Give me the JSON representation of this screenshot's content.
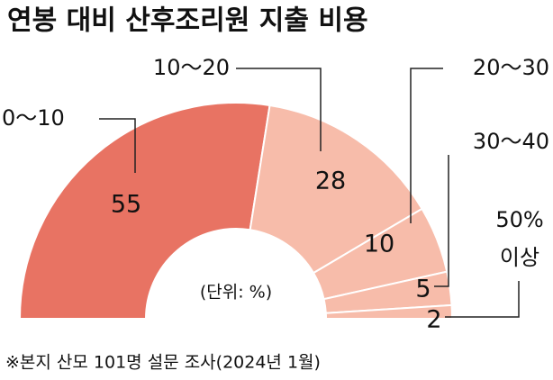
{
  "chart_data": {
    "type": "semi_donut",
    "title": "연봉 대비 산후조리원 지출 비용",
    "unit_note": "(단위: %)",
    "source": "※본지 산모 101명 설문 조사(2024년 1월)",
    "categories": [
      "0～10",
      "10～20",
      "20～30",
      "30～40",
      "50% 이상"
    ],
    "values": [
      55,
      28,
      10,
      5,
      2
    ],
    "colors": [
      "#e87363",
      "#f7bcaa",
      "#f7bcaa",
      "#f7bcaa",
      "#f7bcaa"
    ]
  }
}
